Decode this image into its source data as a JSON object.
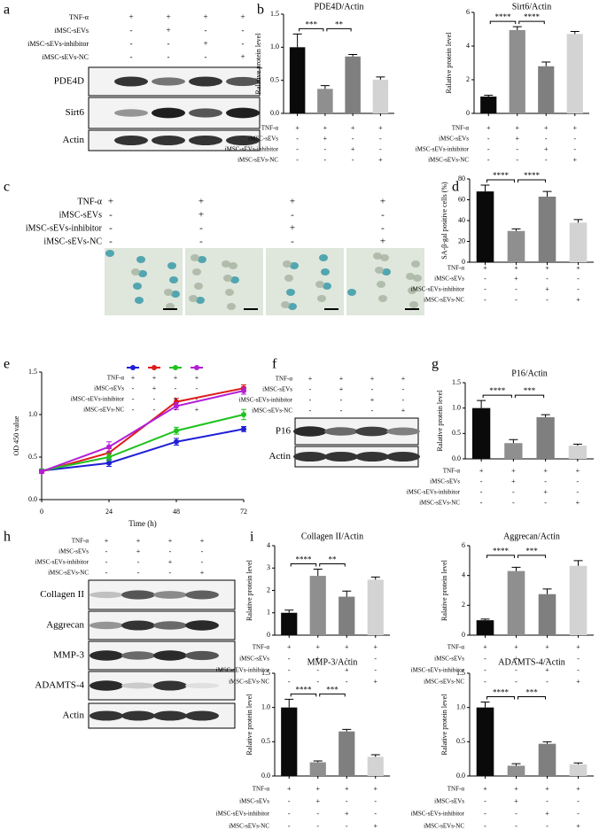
{
  "panel_letters": [
    "a",
    "b",
    "c",
    "d",
    "e",
    "f",
    "g",
    "h",
    "i"
  ],
  "treatments": {
    "rows": [
      {
        "label": "TNF-α",
        "signs": [
          "+",
          "+",
          "+",
          "+"
        ]
      },
      {
        "label": "iMSC-sEVs",
        "signs": [
          "-",
          "+",
          "-",
          "-"
        ]
      },
      {
        "label": "iMSC-sEVs-inhibitor",
        "signs": [
          "-",
          "-",
          "+",
          "-"
        ]
      },
      {
        "label": "iMSC-sEVs-NC",
        "signs": [
          "-",
          "-",
          "-",
          "+"
        ]
      }
    ]
  },
  "blots": {
    "a": [
      "PDE4D",
      "Sirt6",
      "Actin"
    ],
    "f": [
      "P16",
      "Actin"
    ],
    "h": [
      "Collagen II",
      "Aggrecan",
      "MMP-3",
      "ADAMTS-4",
      "Actin"
    ]
  },
  "chart_data": [
    {
      "type": "bar",
      "title": "PDE4D/Actin",
      "y_label": "Ralative protein level",
      "categories": [
        null,
        null,
        null,
        null
      ],
      "values": [
        1.0,
        0.37,
        0.86,
        0.51
      ],
      "errors": [
        0.2,
        0.05,
        0.03,
        0.04
      ],
      "colors": [
        "#0a0a0a",
        "#8f8f8f",
        "#7f7f7f",
        "#d3d3d3"
      ],
      "ylim": [
        0,
        1.5
      ],
      "yticks": [
        {
          "value": 0,
          "label": "0.0"
        },
        0.5,
        {
          "value": 1,
          "label": "1.0"
        },
        1.5
      ],
      "annotations": [
        {
          "text": "***",
          "between": [
            0,
            1
          ]
        },
        {
          "text": "**",
          "between": [
            1,
            2
          ]
        }
      ]
    },
    {
      "type": "bar",
      "title": "Sirt6/Actin",
      "y_label": "Ralative protein level",
      "categories": [
        null,
        null,
        null,
        null
      ],
      "values": [
        1.0,
        4.95,
        2.8,
        4.72
      ],
      "errors": [
        0.08,
        0.2,
        0.25,
        0.15
      ],
      "colors": [
        "#0a0a0a",
        "#8f8f8f",
        "#7f7f7f",
        "#d3d3d3"
      ],
      "ylim": [
        0,
        6
      ],
      "yticks": [
        0,
        2,
        4,
        6
      ],
      "annotations": [
        {
          "text": "****",
          "between": [
            0,
            1
          ]
        },
        {
          "text": "****",
          "between": [
            1,
            2
          ]
        }
      ]
    },
    {
      "type": "bar",
      "y_label": "SA-β-gal positive cells (%)",
      "categories": [
        null,
        null,
        null,
        null
      ],
      "values": [
        68,
        30,
        63,
        38
      ],
      "errors": [
        6,
        2,
        5,
        3
      ],
      "colors": [
        "#0a0a0a",
        "#8f8f8f",
        "#7f7f7f",
        "#d3d3d3"
      ],
      "ylim": [
        0,
        80
      ],
      "yticks": [
        0,
        20,
        40,
        60,
        80
      ],
      "annotations": [
        {
          "text": "****",
          "between": [
            0,
            1
          ]
        },
        {
          "text": "****",
          "between": [
            1,
            2
          ]
        }
      ]
    },
    {
      "type": "line",
      "x_label": "Time (h)",
      "y_label": "OD 450 value",
      "x": [
        0,
        24,
        48,
        72
      ],
      "xlim": [
        0,
        72
      ],
      "xticks": [
        0,
        24,
        48,
        72
      ],
      "ylim": [
        0,
        1.5
      ],
      "yticks": [
        {
          "value": 0,
          "label": "0.0"
        },
        0.5,
        {
          "value": 1,
          "label": "1.0"
        },
        1.5
      ],
      "series": [
        {
          "color": "#1f1fd6",
          "values": [
            0.34,
            0.43,
            0.68,
            0.83
          ],
          "errors": [
            0.02,
            0.04,
            0.04,
            0.03
          ]
        },
        {
          "color": "#e01b1b",
          "values": [
            0.33,
            0.55,
            1.15,
            1.31
          ],
          "errors": [
            0.02,
            0.05,
            0.04,
            0.04
          ]
        },
        {
          "color": "#1fc21f",
          "values": [
            0.34,
            0.5,
            0.81,
            1.0
          ],
          "errors": [
            0.02,
            0.04,
            0.04,
            0.06
          ]
        },
        {
          "color": "#b21fd6",
          "values": [
            0.33,
            0.62,
            1.1,
            1.28
          ],
          "errors": [
            0.02,
            0.06,
            0.04,
            0.04
          ]
        }
      ]
    },
    {
      "type": "bar",
      "title": "P16/Actin",
      "y_label": "Ralative protein level",
      "categories": [
        null,
        null,
        null,
        null
      ],
      "values": [
        1.0,
        0.31,
        0.82,
        0.26
      ],
      "errors": [
        0.15,
        0.07,
        0.05,
        0.03
      ],
      "colors": [
        "#0a0a0a",
        "#8f8f8f",
        "#7f7f7f",
        "#d3d3d3"
      ],
      "ylim": [
        0,
        1.5
      ],
      "yticks": [
        {
          "value": 0,
          "label": "0.0"
        },
        0.5,
        {
          "value": 1,
          "label": "1.0"
        },
        1.5
      ],
      "annotations": [
        {
          "text": "****",
          "between": [
            0,
            1
          ]
        },
        {
          "text": "***",
          "between": [
            1,
            2
          ]
        }
      ]
    },
    {
      "type": "bar",
      "title": "Collagen II/Actin",
      "y_label": "Ralative protein level",
      "categories": [
        null,
        null,
        null,
        null
      ],
      "values": [
        1.0,
        2.65,
        1.72,
        2.48
      ],
      "errors": [
        0.12,
        0.3,
        0.25,
        0.12
      ],
      "colors": [
        "#0a0a0a",
        "#8f8f8f",
        "#7f7f7f",
        "#d3d3d3"
      ],
      "ylim": [
        0,
        4
      ],
      "yticks": [
        0,
        1,
        2,
        3,
        4
      ],
      "annotations": [
        {
          "text": "****",
          "between": [
            0,
            1
          ]
        },
        {
          "text": "**",
          "between": [
            1,
            2
          ]
        }
      ]
    },
    {
      "type": "bar",
      "title": "Aggrecan/Actin",
      "y_label": "Ralative protein level",
      "categories": [
        null,
        null,
        null,
        null
      ],
      "values": [
        1.0,
        4.3,
        2.75,
        4.65
      ],
      "errors": [
        0.08,
        0.25,
        0.35,
        0.35
      ],
      "colors": [
        "#0a0a0a",
        "#8f8f8f",
        "#7f7f7f",
        "#d3d3d3"
      ],
      "ylim": [
        0,
        6
      ],
      "yticks": [
        0,
        2,
        4,
        6
      ],
      "annotations": [
        {
          "text": "****",
          "between": [
            0,
            1
          ]
        },
        {
          "text": "***",
          "between": [
            1,
            2
          ]
        }
      ]
    },
    {
      "type": "bar",
      "title": "MMP-3/Actin",
      "y_label": "Ralative protein level",
      "categories": [
        null,
        null,
        null,
        null
      ],
      "values": [
        1.0,
        0.2,
        0.65,
        0.28
      ],
      "errors": [
        0.12,
        0.02,
        0.03,
        0.03
      ],
      "colors": [
        "#0a0a0a",
        "#8f8f8f",
        "#7f7f7f",
        "#d3d3d3"
      ],
      "ylim": [
        0,
        1.5
      ],
      "yticks": [
        {
          "value": 0,
          "label": "0.0"
        },
        0.5,
        {
          "value": 1,
          "label": "1.0"
        },
        1.5
      ],
      "annotations": [
        {
          "text": "****",
          "between": [
            0,
            1
          ]
        },
        {
          "text": "***",
          "between": [
            1,
            2
          ]
        }
      ]
    },
    {
      "type": "bar",
      "title": "ADAMTS-4/Actin",
      "y_label": "Ralative protein level",
      "categories": [
        null,
        null,
        null,
        null
      ],
      "values": [
        1.0,
        0.15,
        0.47,
        0.17
      ],
      "errors": [
        0.08,
        0.03,
        0.03,
        0.02
      ],
      "colors": [
        "#0a0a0a",
        "#8f8f8f",
        "#7f7f7f",
        "#d3d3d3"
      ],
      "ylim": [
        0,
        1.5
      ],
      "yticks": [
        {
          "value": 0,
          "label": "0.0"
        },
        0.5,
        {
          "value": 1,
          "label": "1.0"
        },
        1.5
      ],
      "annotations": [
        {
          "text": "****",
          "between": [
            0,
            1
          ]
        },
        {
          "text": "***",
          "between": [
            1,
            2
          ]
        }
      ]
    }
  ]
}
